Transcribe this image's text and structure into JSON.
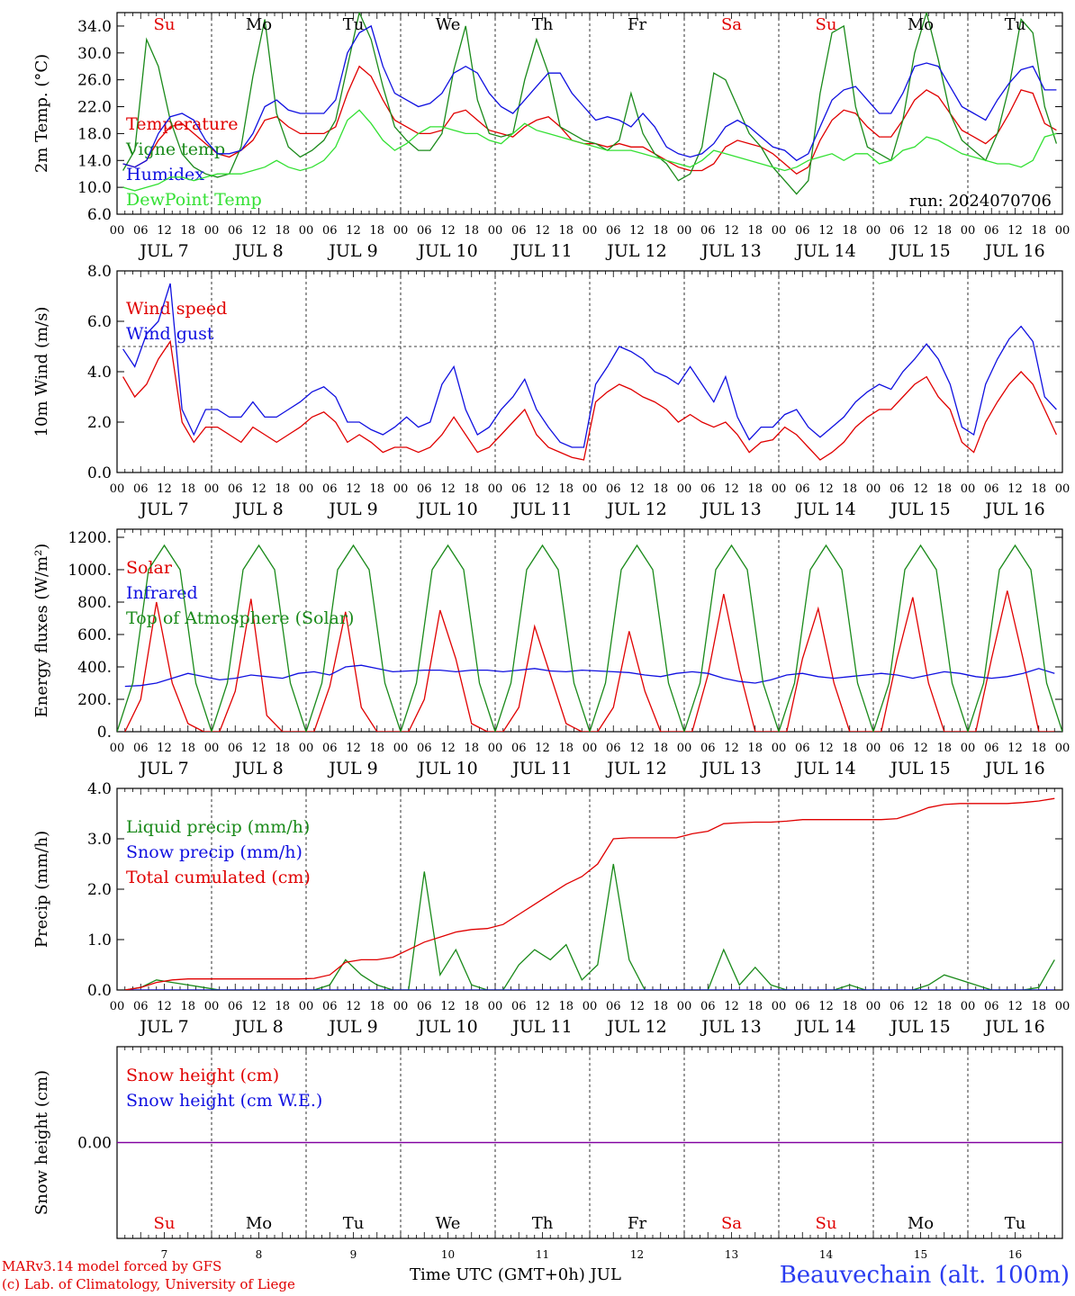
{
  "run_label": "run: 2024070706",
  "days": {
    "dates": [
      "7",
      "8",
      "9",
      "10",
      "11",
      "12",
      "13",
      "14",
      "15",
      "16"
    ],
    "date_labels": [
      "JUL  7",
      "JUL  8",
      "JUL  9",
      "JUL 10",
      "JUL 11",
      "JUL 12",
      "JUL 13",
      "JUL 14",
      "JUL 15",
      "JUL 16"
    ],
    "weekdays": [
      "Su",
      "Mo",
      "Tu",
      "We",
      "Th",
      "Fr",
      "Sa",
      "Su",
      "Mo",
      "Tu"
    ],
    "weekday_colors": [
      "#e00000",
      "#000000",
      "#000000",
      "#000000",
      "#000000",
      "#000000",
      "#e00000",
      "#e00000",
      "#000000",
      "#000000"
    ],
    "hour_ticks": [
      "00",
      "06",
      "12",
      "18"
    ],
    "end_tick": "00"
  },
  "footer": {
    "model": "MARv3.14 model forced by GFS",
    "lab": "(c) Lab. of Climatology, University of Liege",
    "axis_title": "Time UTC (GMT+0h) JUL",
    "station": "Beauvechain (alt. 100m)"
  },
  "colors": {
    "red": "#e00000",
    "green": "#1a8a1a",
    "blue": "#1010e0",
    "lime": "#33e033",
    "purple": "#8000a0"
  },
  "chart_data": [
    {
      "type": "line",
      "ylabel": "2m Temp. (°C)",
      "ylim": [
        6,
        36
      ],
      "yticks": [
        "6.0",
        "10.0",
        "14.0",
        "18.0",
        "22.0",
        "26.0",
        "30.0",
        "34.0"
      ],
      "ytick_values": [
        6,
        10,
        14,
        18,
        22,
        26,
        30,
        34
      ],
      "x_hours_step": 6,
      "series": [
        {
          "name": "Temperature",
          "color": "red",
          "values": [
            13.5,
            13,
            14,
            17,
            19,
            19.5,
            18,
            16.5,
            15,
            14.5,
            15.5,
            17,
            20,
            20.5,
            19,
            18,
            18,
            18,
            19,
            24,
            28,
            26.5,
            23,
            20,
            19,
            18,
            18,
            18.5,
            21,
            21.5,
            20,
            18.5,
            18,
            17.5,
            19,
            20,
            20.5,
            19,
            17,
            16.5,
            16.5,
            16,
            16.5,
            16,
            16,
            15,
            14,
            13,
            12.5,
            12.5,
            13.5,
            16,
            17,
            16.5,
            16,
            15,
            13.5,
            12,
            13,
            17,
            20,
            21.5,
            21,
            19,
            17.5,
            17.5,
            20,
            23,
            24.5,
            23.5,
            21,
            18.5,
            17.5,
            16.5,
            18,
            21,
            24.5,
            24,
            19.5,
            18.5
          ]
        },
        {
          "name": "Vigne temp",
          "color": "green",
          "values": [
            12.5,
            15.5,
            32,
            28,
            20,
            15,
            13,
            12,
            11.5,
            12,
            16,
            26.5,
            35,
            21,
            16,
            14.5,
            15.5,
            17,
            20,
            28,
            36,
            32,
            25,
            19,
            17,
            15.5,
            15.5,
            18,
            27.5,
            34,
            23,
            18,
            17.5,
            18,
            26,
            32,
            27,
            19,
            18,
            17,
            16.5,
            15.5,
            17,
            24,
            18,
            15,
            13.5,
            11,
            12,
            16,
            27,
            26,
            22,
            18,
            16,
            13,
            11,
            9,
            11,
            24,
            33,
            34,
            22,
            16,
            15,
            14,
            20,
            30,
            36,
            29,
            21,
            17,
            15.5,
            14,
            18,
            25,
            35,
            33,
            22,
            16.5
          ]
        },
        {
          "name": "Humidex",
          "color": "blue",
          "values": [
            13.5,
            13,
            14,
            18,
            20.5,
            21,
            20,
            17,
            15,
            15,
            15.5,
            18,
            22,
            23,
            21.5,
            21,
            21,
            21,
            23,
            30,
            33,
            34,
            28,
            24,
            23,
            22,
            22.5,
            24,
            27,
            28,
            27,
            24,
            22,
            21,
            23,
            25,
            27,
            27,
            24,
            22,
            20,
            20.5,
            20,
            19,
            21,
            19,
            16,
            15,
            14.5,
            15,
            16.5,
            19,
            20,
            19,
            17.5,
            16,
            15.5,
            14,
            15,
            19,
            23,
            24.5,
            25,
            23,
            21,
            21,
            24,
            28,
            28.5,
            28,
            25,
            22,
            21,
            20,
            23,
            25.5,
            27.5,
            28,
            24.5,
            24.5
          ]
        },
        {
          "name": "DewPoint Temp",
          "color": "lime",
          "values": [
            10,
            9.5,
            10,
            10.5,
            11.5,
            11.5,
            11,
            11.5,
            12,
            12,
            12,
            12.5,
            13,
            14,
            13,
            12.5,
            13,
            14,
            16,
            20,
            21.5,
            19.5,
            17,
            15.5,
            16.5,
            18,
            19,
            19,
            18.5,
            18,
            18,
            17,
            16.5,
            18,
            19.5,
            18.5,
            18,
            17.5,
            17,
            16.5,
            16,
            15.5,
            15.5,
            15.5,
            15,
            14.5,
            14,
            13.5,
            13,
            14,
            15.5,
            15,
            14.5,
            14,
            13.5,
            13,
            12.5,
            13,
            14,
            14.5,
            15,
            14,
            15,
            15,
            13.5,
            14,
            15.5,
            16,
            17.5,
            17,
            16,
            15,
            14.5,
            14,
            13.5,
            13.5,
            13,
            14,
            17.5,
            18
          ]
        }
      ]
    },
    {
      "type": "line",
      "ylabel": "10m Wind (m/s)",
      "ylim": [
        0,
        8
      ],
      "yticks": [
        "0.0",
        "2.0",
        "4.0",
        "6.0",
        "8.0"
      ],
      "ytick_values": [
        0,
        2,
        4,
        6,
        8
      ],
      "x_hours_step": 6,
      "reference_line": 5,
      "series": [
        {
          "name": "Wind speed",
          "color": "red",
          "values": [
            3.8,
            3,
            3.5,
            4.5,
            5.2,
            2,
            1.2,
            1.8,
            1.8,
            1.5,
            1.2,
            1.8,
            1.5,
            1.2,
            1.5,
            1.8,
            2.2,
            2.4,
            2,
            1.2,
            1.5,
            1.2,
            0.8,
            1,
            1,
            0.8,
            1,
            1.5,
            2.2,
            1.5,
            0.8,
            1,
            1.5,
            2,
            2.5,
            1.5,
            1,
            0.8,
            0.6,
            0.5,
            2.8,
            3.2,
            3.5,
            3.3,
            3,
            2.8,
            2.5,
            2,
            2.3,
            2,
            1.8,
            2,
            1.5,
            0.8,
            1.2,
            1.3,
            1.8,
            1.5,
            1,
            0.5,
            0.8,
            1.2,
            1.8,
            2.2,
            2.5,
            2.5,
            3,
            3.5,
            3.8,
            3,
            2.5,
            1.2,
            0.8,
            2,
            2.8,
            3.5,
            4,
            3.5,
            2.5,
            1.5
          ]
        },
        {
          "name": "Wind gust",
          "color": "blue",
          "values": [
            4.9,
            4.2,
            5.5,
            6,
            7.5,
            2.5,
            1.5,
            2.5,
            2.5,
            2.2,
            2.2,
            2.8,
            2.2,
            2.2,
            2.5,
            2.8,
            3.2,
            3.4,
            3,
            2,
            2,
            1.7,
            1.5,
            1.8,
            2.2,
            1.8,
            2,
            3.5,
            4.2,
            2.5,
            1.5,
            1.8,
            2.5,
            3,
            3.7,
            2.5,
            1.8,
            1.2,
            1,
            1,
            3.5,
            4.2,
            5,
            4.8,
            4.5,
            4,
            3.8,
            3.5,
            4.2,
            3.5,
            2.8,
            3.8,
            2.2,
            1.3,
            1.8,
            1.8,
            2.3,
            2.5,
            1.8,
            1.4,
            1.8,
            2.2,
            2.8,
            3.2,
            3.5,
            3.3,
            4,
            4.5,
            5.1,
            4.5,
            3.5,
            1.8,
            1.5,
            3.5,
            4.5,
            5.3,
            5.8,
            5.2,
            3,
            2.5
          ]
        }
      ]
    },
    {
      "type": "line",
      "ylabel": "Energy fluxes (W/m²)",
      "ylim": [
        0,
        1250
      ],
      "yticks": [
        "0.",
        "200.",
        "400.",
        "600.",
        "800.",
        "1000.",
        "1200."
      ],
      "ytick_values": [
        0,
        200,
        400,
        600,
        800,
        1000,
        1200
      ],
      "x_hours_step": 6,
      "series": [
        {
          "name": "Solar",
          "color": "red",
          "values": [
            0,
            200,
            800,
            300,
            50,
            0,
            0,
            250,
            820,
            100,
            0,
            0,
            0,
            280,
            740,
            150,
            0,
            0,
            0,
            200,
            750,
            450,
            50,
            0,
            0,
            150,
            650,
            350,
            50,
            0,
            0,
            150,
            620,
            250,
            0,
            0,
            0,
            350,
            850,
            380,
            0,
            0,
            0,
            450,
            760,
            300,
            0,
            0,
            0,
            450,
            830,
            300,
            0,
            0,
            0,
            450,
            870,
            450,
            0,
            0
          ],
          "x_hours_step": 4
        },
        {
          "name": "Infrared",
          "color": "blue",
          "values": [
            280,
            285,
            300,
            330,
            360,
            340,
            320,
            330,
            350,
            340,
            330,
            360,
            370,
            350,
            400,
            410,
            390,
            370,
            375,
            380,
            380,
            370,
            380,
            380,
            370,
            380,
            390,
            375,
            370,
            380,
            375,
            370,
            365,
            350,
            340,
            360,
            370,
            360,
            330,
            310,
            300,
            320,
            350,
            360,
            340,
            330,
            340,
            350,
            360,
            350,
            330,
            350,
            370,
            360,
            340,
            330,
            340,
            360,
            390,
            360
          ],
          "x_hours_step": 4
        },
        {
          "name": "Top of Atmosphere (Solar)",
          "color": "green",
          "values": [
            0,
            300,
            1000,
            1150,
            1000,
            300,
            0
          ],
          "x_hours_step": 4,
          "periodic_daily": true
        }
      ]
    },
    {
      "type": "line",
      "ylabel": "Precip (mm/h)",
      "ylim": [
        0,
        4
      ],
      "yticks": [
        "0.0",
        "1.0",
        "2.0",
        "3.0",
        "4.0"
      ],
      "ytick_values": [
        0,
        1,
        2,
        3,
        4
      ],
      "x_hours_step": 6,
      "series": [
        {
          "name": "Liquid precip (mm/h)",
          "color": "green",
          "values": [
            0,
            0.05,
            0.2,
            0.15,
            0.1,
            0.05,
            0,
            0,
            0,
            0,
            0,
            0,
            0,
            0.1,
            0.6,
            0.3,
            0.1,
            0,
            0,
            2.35,
            0.3,
            0.8,
            0.1,
            0,
            0,
            0.5,
            0.8,
            0.6,
            0.9,
            0.2,
            0.5,
            2.5,
            0.6,
            0,
            0,
            0,
            0,
            0,
            0.8,
            0.1,
            0.45,
            0.1,
            0,
            0,
            0,
            0,
            0.1,
            0,
            0,
            0,
            0,
            0.1,
            0.3,
            0.2,
            0.1,
            0,
            0,
            0,
            0.05,
            0.6
          ]
        },
        {
          "name": "Snow precip (mm/h)",
          "color": "blue",
          "values": [
            0,
            0,
            0,
            0,
            0,
            0,
            0,
            0,
            0,
            0,
            0,
            0,
            0,
            0,
            0,
            0,
            0,
            0,
            0,
            0,
            0,
            0,
            0,
            0,
            0,
            0,
            0,
            0,
            0,
            0,
            0,
            0,
            0,
            0,
            0,
            0,
            0,
            0,
            0,
            0,
            0,
            0,
            0,
            0,
            0,
            0,
            0,
            0,
            0,
            0,
            0,
            0,
            0,
            0,
            0,
            0,
            0,
            0,
            0,
            0
          ]
        },
        {
          "name": "Total cumulated (cm)",
          "color": "red",
          "values": [
            0,
            0.05,
            0.15,
            0.2,
            0.22,
            0.22,
            0.22,
            0.22,
            0.22,
            0.22,
            0.22,
            0.22,
            0.23,
            0.3,
            0.55,
            0.6,
            0.6,
            0.65,
            0.8,
            0.95,
            1.05,
            1.15,
            1.2,
            1.22,
            1.3,
            1.5,
            1.7,
            1.9,
            2.1,
            2.25,
            2.5,
            3.0,
            3.02,
            3.02,
            3.02,
            3.02,
            3.1,
            3.15,
            3.3,
            3.32,
            3.33,
            3.33,
            3.35,
            3.38,
            3.38,
            3.38,
            3.38,
            3.38,
            3.38,
            3.4,
            3.5,
            3.62,
            3.68,
            3.7,
            3.7,
            3.7,
            3.7,
            3.72,
            3.75,
            3.8
          ]
        }
      ]
    },
    {
      "type": "line",
      "ylabel": "Snow height (cm)",
      "ylim": [
        -1,
        1
      ],
      "yticks": [
        "0.00"
      ],
      "ytick_values": [
        0
      ],
      "x_hours_step": 6,
      "series": [
        {
          "name": "Snow height (cm)",
          "color": "red",
          "values": [
            0,
            0
          ]
        },
        {
          "name": "Snow height (cm W.E.)",
          "color": "blue",
          "values": [
            0,
            0
          ]
        }
      ]
    }
  ]
}
